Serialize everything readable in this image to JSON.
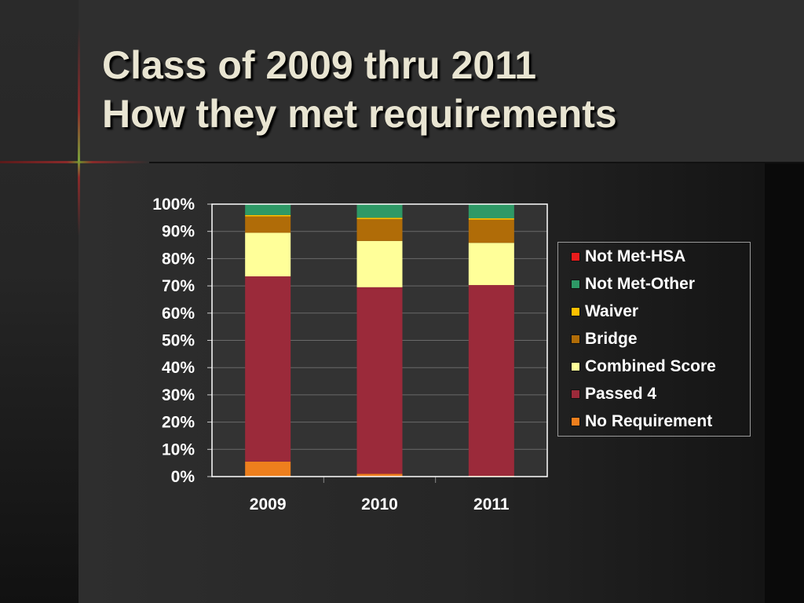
{
  "slide": {
    "title_line1": "Class of 2009 thru 2011",
    "title_line2": "How they met requirements"
  },
  "chart_data": {
    "type": "bar",
    "stacked": true,
    "percent_stacked": true,
    "categories": [
      "2009",
      "2010",
      "2011"
    ],
    "series": [
      {
        "name": "No Requirement",
        "color": "#ee7f1d",
        "values": [
          5.5,
          1.0,
          0.3
        ]
      },
      {
        "name": "Passed 4",
        "color": "#9b2a3a",
        "values": [
          68.0,
          68.5,
          70.0
        ]
      },
      {
        "name": "Combined Score",
        "color": "#ffff99",
        "values": [
          16.0,
          17.0,
          15.5
        ]
      },
      {
        "name": "Bridge",
        "color": "#b06c08",
        "values": [
          6.0,
          8.0,
          8.5
        ]
      },
      {
        "name": "Waiver",
        "color": "#ffc000",
        "values": [
          0.5,
          0.5,
          0.5
        ]
      },
      {
        "name": "Not Met-Other",
        "color": "#2e9966",
        "values": [
          4.0,
          5.0,
          5.2
        ]
      },
      {
        "name": "Not Met-HSA",
        "color": "#e81c1c",
        "values": [
          0.0,
          0.0,
          0.0
        ]
      }
    ],
    "ylim": [
      0,
      100
    ],
    "y_ticks": [
      "0%",
      "10%",
      "20%",
      "30%",
      "40%",
      "50%",
      "60%",
      "70%",
      "80%",
      "90%",
      "100%"
    ],
    "legend_order": [
      "Not Met-HSA",
      "Not Met-Other",
      "Waiver",
      "Bridge",
      "Combined Score",
      "Passed 4",
      "No Requirement"
    ],
    "legend_position": "right",
    "grid": true,
    "plot_background": "#333333",
    "gridline_color": "#6a6a6a"
  }
}
